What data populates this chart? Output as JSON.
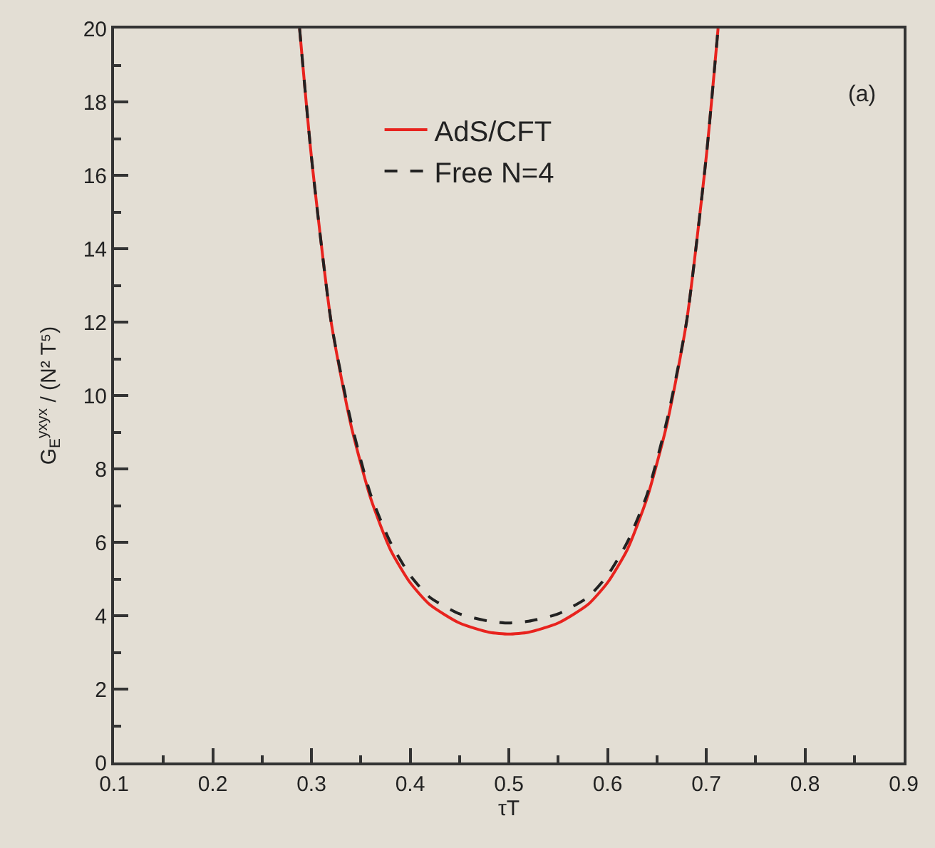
{
  "chart_data": {
    "type": "line",
    "xlabel": "τT",
    "ylabel": "G$_{E}$$^{yxyx}$ / (N² T⁵)",
    "annotations": [
      "(a)"
    ],
    "xlim": [
      0.1,
      0.9
    ],
    "xticks": [
      0.1,
      0.2,
      0.3,
      0.4,
      0.5,
      0.6,
      0.7,
      0.8,
      0.9
    ],
    "ylim": [
      0,
      20
    ],
    "yticks": [
      0,
      2,
      4,
      6,
      8,
      10,
      12,
      14,
      16,
      18,
      20
    ],
    "grid": false,
    "legend": "top",
    "marker": "none",
    "series": [
      {
        "name": "AdS/CFT",
        "color": "#e8231e",
        "line_style": "solid",
        "x": [
          0.288,
          0.3,
          0.32,
          0.34,
          0.36,
          0.38,
          0.4,
          0.42,
          0.45,
          0.48,
          0.5,
          0.52,
          0.55,
          0.58,
          0.6,
          0.62,
          0.64,
          0.66,
          0.68,
          0.7,
          0.712
        ],
        "values": [
          20,
          16.5,
          12.0,
          9.2,
          7.2,
          5.8,
          4.9,
          4.3,
          3.8,
          3.55,
          3.5,
          3.55,
          3.8,
          4.3,
          4.9,
          5.8,
          7.2,
          9.2,
          12.0,
          16.5,
          20
        ]
      },
      {
        "name": "Free N=4",
        "color": "#222222",
        "line_style": "dashed",
        "x": [
          0.288,
          0.3,
          0.32,
          0.34,
          0.36,
          0.38,
          0.4,
          0.42,
          0.45,
          0.48,
          0.5,
          0.52,
          0.55,
          0.58,
          0.6,
          0.62,
          0.64,
          0.66,
          0.68,
          0.7,
          0.712
        ],
        "values": [
          20,
          16.5,
          12.0,
          9.3,
          7.3,
          6.0,
          5.1,
          4.5,
          4.05,
          3.85,
          3.8,
          3.85,
          4.05,
          4.5,
          5.1,
          6.0,
          7.3,
          9.3,
          12.0,
          16.5,
          20
        ]
      }
    ]
  }
}
